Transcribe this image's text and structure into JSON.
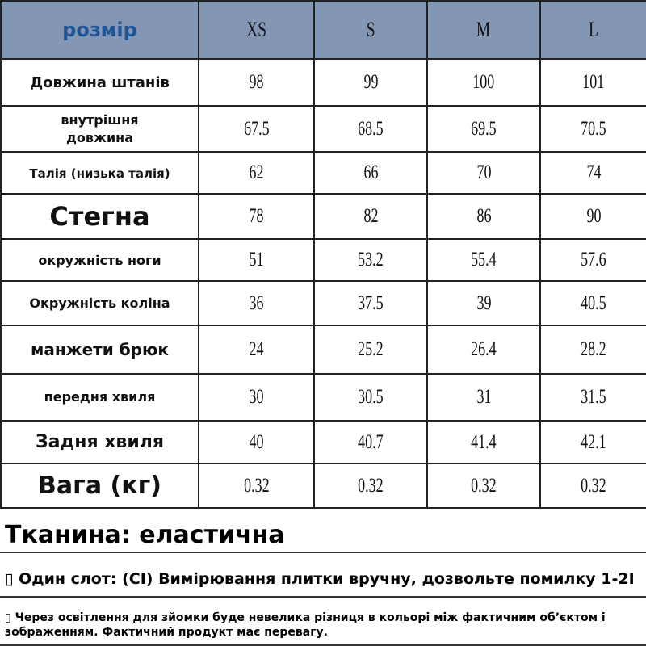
{
  "header": {
    "label": "розмір",
    "sizes": [
      "XS",
      "S",
      "M",
      "L"
    ]
  },
  "rows": [
    {
      "label": "Довжина штанів",
      "values": [
        "98",
        "99",
        "100",
        "101"
      ]
    },
    {
      "label": "внутрішня довжина",
      "values": [
        "67.5",
        "68.5",
        "69.5",
        "70.5"
      ]
    },
    {
      "label": "Талія (низька талія)",
      "values": [
        "62",
        "66",
        "70",
        "74"
      ]
    },
    {
      "label": "Стегна",
      "values": [
        "78",
        "82",
        "86",
        "90"
      ]
    },
    {
      "label": "окружність ноги",
      "values": [
        "51",
        "53.2",
        "55.4",
        "57.6"
      ]
    },
    {
      "label": "Окружність коліна",
      "values": [
        "36",
        "37.5",
        "39",
        "40.5"
      ]
    },
    {
      "label": "манжети брюк",
      "values": [
        "24",
        "25.2",
        "26.4",
        "28.2"
      ]
    },
    {
      "label": "передня хвиля",
      "values": [
        "30",
        "30.5",
        "31",
        "31.5"
      ]
    },
    {
      "label": "Задня хвиля",
      "values": [
        "40",
        "40.7",
        "41.4",
        "42.1"
      ]
    },
    {
      "label": "Вага (кг)",
      "values": [
        "0.32",
        "0.32",
        "0.32",
        "0.32"
      ]
    }
  ],
  "notes": {
    "fabric": "Тканина: еластична",
    "measure": "▯ Один слот: (CI) Вимірювання плитки вручну, дозвольте помилку 1-2I",
    "disclaimer": "▯ Через освітлення для зйомки буде невелика різниця в кольорі між фактичним об’єктом і зображенням. Фактичний продукт має перевагу."
  },
  "colors": {
    "header_bg": "#8397b5",
    "header_label": "#1f5596"
  }
}
